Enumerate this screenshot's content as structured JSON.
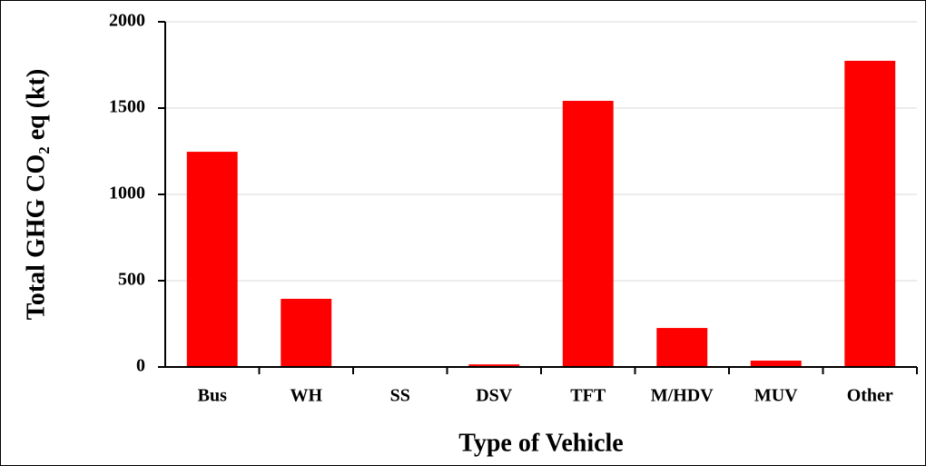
{
  "chart_data": {
    "type": "bar",
    "x_label": "Type of Vehicle",
    "y_label": "Total GHG CO₂ eq (kt)",
    "categories": [
      "Bus",
      "WH",
      "SS",
      "DSV",
      "TFT",
      "M/HDV",
      "MUV",
      "Other"
    ],
    "values": [
      1247,
      395,
      5,
      15,
      1542,
      226,
      37,
      1774
    ],
    "color": "#ff0000",
    "ylim": [
      0,
      2000
    ],
    "yticks": [
      0,
      500,
      1000,
      1500,
      2000
    ],
    "grid": true
  }
}
